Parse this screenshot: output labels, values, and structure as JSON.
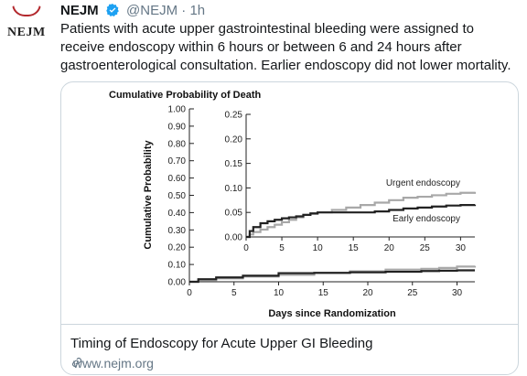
{
  "tweet": {
    "avatar_label": "NEJM",
    "display_name": "NEJM",
    "handle": "@NEJM",
    "separator": "·",
    "time": "1h",
    "text": "Patients with acute upper gastrointestinal bleeding were assigned to receive endoscopy within 6 hours or between 6 and 24 hours after gastroenterological consultation. Earlier endoscopy did not lower mortality.",
    "card": {
      "title": "Timing of Endoscopy for Acute Upper GI Bleeding",
      "url": "www.nejm.org"
    }
  },
  "colors": {
    "verified": "#1da1f2",
    "urgent_line": "#a8a8a8",
    "early_line": "#222222",
    "brand_red": "#b3282d"
  },
  "chart_data": [
    {
      "type": "line",
      "title": "Cumulative Probability of Death",
      "xlabel": "Days since Randomization",
      "ylabel": "Cumulative Probability",
      "xlim": [
        0,
        32
      ],
      "ylim": [
        0,
        1.0
      ],
      "x_ticks": [
        "0",
        "5",
        "10",
        "15",
        "20",
        "25",
        "30"
      ],
      "y_ticks": [
        "0.00",
        "0.10",
        "0.20",
        "0.30",
        "0.40",
        "0.50",
        "0.60",
        "0.70",
        "0.80",
        "0.90",
        "1.00"
      ],
      "series": [
        {
          "name": "Urgent endoscopy",
          "x": [
            0,
            1,
            3,
            6,
            10,
            14,
            18,
            22,
            26,
            28,
            30,
            32
          ],
          "y": [
            0,
            0.01,
            0.02,
            0.03,
            0.04,
            0.05,
            0.06,
            0.07,
            0.075,
            0.08,
            0.088,
            0.092
          ]
        },
        {
          "name": "Early endoscopy",
          "x": [
            0,
            1,
            3,
            6,
            10,
            14,
            18,
            22,
            26,
            28,
            30,
            32
          ],
          "y": [
            0,
            0.015,
            0.025,
            0.035,
            0.05,
            0.052,
            0.055,
            0.058,
            0.062,
            0.064,
            0.066,
            0.066
          ]
        }
      ]
    },
    {
      "type": "line",
      "title": "",
      "xlabel": "",
      "ylabel": "",
      "xlim": [
        0,
        32
      ],
      "ylim": [
        0,
        0.25
      ],
      "x_ticks": [
        "0",
        "5",
        "10",
        "15",
        "20",
        "25",
        "30"
      ],
      "y_ticks": [
        "0.00",
        "0.05",
        "0.10",
        "0.15",
        "0.20",
        "0.25"
      ],
      "series": [
        {
          "name": "Urgent endoscopy",
          "x": [
            0,
            0.5,
            1,
            2,
            3,
            4,
            5,
            6,
            7,
            8,
            9,
            10,
            12,
            14,
            16,
            18,
            20,
            22,
            24,
            26,
            28,
            30,
            32
          ],
          "y": [
            0,
            0.005,
            0.01,
            0.015,
            0.02,
            0.025,
            0.03,
            0.035,
            0.04,
            0.045,
            0.047,
            0.05,
            0.055,
            0.06,
            0.065,
            0.07,
            0.075,
            0.08,
            0.082,
            0.085,
            0.088,
            0.09,
            0.092
          ]
        },
        {
          "name": "Early endoscopy",
          "x": [
            0,
            0.5,
            1,
            2,
            3,
            4,
            5,
            6,
            7,
            8,
            9,
            10,
            12,
            14,
            16,
            18,
            20,
            22,
            24,
            26,
            28,
            30,
            32
          ],
          "y": [
            0,
            0.012,
            0.02,
            0.028,
            0.032,
            0.035,
            0.038,
            0.04,
            0.042,
            0.045,
            0.048,
            0.05,
            0.05,
            0.05,
            0.05,
            0.052,
            0.055,
            0.058,
            0.06,
            0.062,
            0.064,
            0.065,
            0.066
          ]
        }
      ]
    }
  ]
}
